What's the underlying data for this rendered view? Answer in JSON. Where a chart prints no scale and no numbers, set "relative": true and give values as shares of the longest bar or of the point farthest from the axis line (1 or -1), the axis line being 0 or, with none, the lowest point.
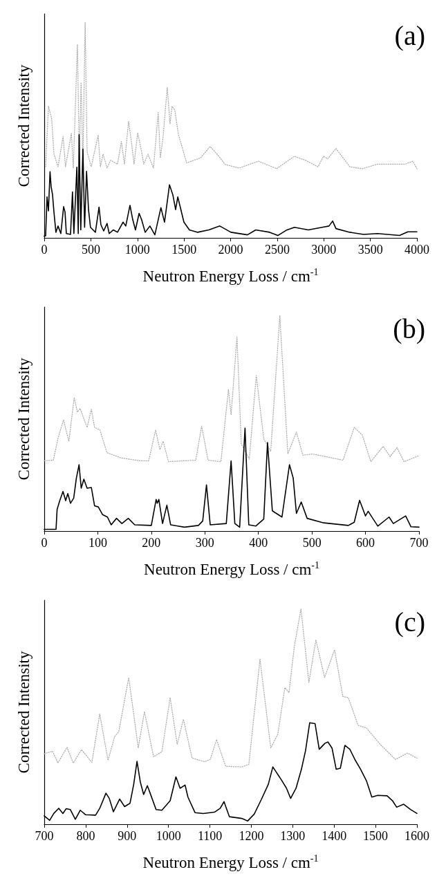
{
  "chart_data": [
    {
      "type": "line",
      "title": "(a)",
      "xlabel": "Neutron Energy Loss / cm$^{-1}$",
      "ylabel": "Corrected Intensity",
      "relative": true,
      "xlim": [
        0,
        4000
      ],
      "xticks": [
        0,
        500,
        1000,
        1500,
        2000,
        2500,
        3000,
        3500,
        4000
      ],
      "grid": false,
      "marker": "none",
      "series": [
        {
          "color": "#000000",
          "line_style": "solid",
          "x": [
            0,
            15,
            30,
            45,
            62,
            74,
            89,
            104,
            125,
            148,
            178,
            208,
            223,
            237,
            282,
            303,
            318,
            350,
            365,
            374,
            392,
            415,
            433,
            454,
            475,
            496,
            549,
            588,
            608,
            638,
            674,
            697,
            742,
            786,
            846,
            875,
            920,
            950,
            979,
            1018,
            1045,
            1083,
            1134,
            1187,
            1252,
            1291,
            1344,
            1380,
            1410,
            1433,
            1499,
            1558,
            1647,
            1766,
            1884,
            2003,
            2181,
            2270,
            2419,
            2507,
            2596,
            2685,
            2834,
            2982,
            3056,
            3095,
            3131,
            3279,
            3427,
            3576,
            3813,
            3902,
            4000
          ],
          "values": [
            0.008,
            0.01,
            0.19,
            0.125,
            0.307,
            0.237,
            0.2,
            0.12,
            0.026,
            0.055,
            0.02,
            0.145,
            0.12,
            0.02,
            0.016,
            0.213,
            0.02,
            0.328,
            0.02,
            0.479,
            0.037,
            0.412,
            0.049,
            0.309,
            0.131,
            0.049,
            0.026,
            0.143,
            0.061,
            0.032,
            0.067,
            0.02,
            0.037,
            0.026,
            0.073,
            0.055,
            0.151,
            0.084,
            0.037,
            0.114,
            0.084,
            0.026,
            0.055,
            0.014,
            0.14,
            0.073,
            0.246,
            0.2,
            0.131,
            0.19,
            0.073,
            0.037,
            0.026,
            0.037,
            0.055,
            0.026,
            0.014,
            0.037,
            0.026,
            0.011,
            0.035,
            0.049,
            0.037,
            0.049,
            0.055,
            0.078,
            0.043,
            0.026,
            0.016,
            0.02,
            0.011,
            0.028,
            0.028
          ]
        },
        {
          "color": "#b0b0b0",
          "line_style": "dotted",
          "x": [
            15,
            45,
            80,
            104,
            148,
            202,
            228,
            291,
            312,
            356,
            377,
            395,
            415,
            439,
            460,
            504,
            579,
            602,
            632,
            674,
            712,
            786,
            828,
            861,
            905,
            935,
            964,
            1003,
            1045,
            1068,
            1113,
            1172,
            1223,
            1246,
            1276,
            1320,
            1350,
            1371,
            1401,
            1439,
            1528,
            1677,
            1780,
            1855,
            1944,
            2092,
            2300,
            2493,
            2685,
            2804,
            2938,
            2997,
            3042,
            3131,
            3279,
            3413,
            3576,
            3872,
            3955,
            4000
          ],
          "values": [
            0.33,
            0.611,
            0.553,
            0.389,
            0.33,
            0.471,
            0.33,
            0.485,
            0.324,
            0.898,
            0.354,
            0.722,
            0.354,
            1.0,
            0.4,
            0.33,
            0.477,
            0.33,
            0.389,
            0.324,
            0.36,
            0.342,
            0.447,
            0.342,
            0.541,
            0.447,
            0.342,
            0.488,
            0.4,
            0.342,
            0.389,
            0.324,
            0.582,
            0.371,
            0.471,
            0.699,
            0.529,
            0.611,
            0.594,
            0.482,
            0.348,
            0.371,
            0.424,
            0.389,
            0.34,
            0.324,
            0.356,
            0.321,
            0.379,
            0.36,
            0.33,
            0.379,
            0.367,
            0.415,
            0.33,
            0.321,
            0.342,
            0.342,
            0.356,
            0.321
          ]
        }
      ]
    },
    {
      "type": "line",
      "title": "(b)",
      "xlabel": "Neutron Energy Loss / cm$^{-1}$",
      "ylabel": "Corrected Intensity",
      "relative": true,
      "xlim": [
        0,
        700
      ],
      "xticks": [
        0,
        100,
        200,
        300,
        400,
        500,
        600,
        700
      ],
      "grid": false,
      "marker": "none",
      "series": [
        {
          "color": "#000000",
          "line_style": "solid",
          "x": [
            0,
            22,
            24,
            29,
            35,
            40,
            44,
            49,
            55,
            60,
            65,
            69,
            74,
            80,
            88,
            94,
            101,
            109,
            118,
            125,
            135,
            145,
            157,
            169,
            200,
            209,
            211,
            214,
            221,
            229,
            236,
            262,
            288,
            296,
            303,
            310,
            340,
            349,
            356,
            365,
            375,
            382,
            395,
            410,
            417,
            426,
            444,
            458,
            465,
            471,
            480,
            491,
            522,
            568,
            579,
            589,
            600,
            605,
            623,
            644,
            652,
            675,
            685,
            700
          ],
          "values": [
            0.008,
            0.008,
            0.1,
            0.141,
            0.184,
            0.141,
            0.174,
            0.129,
            0.153,
            0.246,
            0.308,
            0.199,
            0.241,
            0.199,
            0.202,
            0.117,
            0.112,
            0.076,
            0.065,
            0.029,
            0.059,
            0.035,
            0.059,
            0.029,
            0.026,
            0.147,
            0.129,
            0.147,
            0.035,
            0.12,
            0.029,
            0.018,
            0.026,
            0.047,
            0.214,
            0.029,
            0.035,
            0.326,
            0.035,
            0.018,
            0.478,
            0.029,
            0.023,
            0.056,
            0.411,
            0.094,
            0.065,
            0.308,
            0.246,
            0.082,
            0.135,
            0.059,
            0.038,
            0.026,
            0.041,
            0.143,
            0.07,
            0.092,
            0.023,
            0.065,
            0.035,
            0.07,
            0.02,
            0.018
          ]
        },
        {
          "color": "#b0b0b0",
          "line_style": "dotted",
          "x": [
            0,
            17,
            26,
            36,
            46,
            56,
            62,
            67,
            80,
            88,
            94,
            104,
            117,
            143,
            179,
            195,
            208,
            216,
            222,
            232,
            283,
            294,
            306,
            330,
            344,
            349,
            360,
            368,
            383,
            396,
            410,
            423,
            440,
            455,
            471,
            483,
            501,
            558,
            579,
            594,
            610,
            633,
            646,
            659,
            672,
            700
          ],
          "values": [
            0.326,
            0.329,
            0.434,
            0.516,
            0.417,
            0.62,
            0.552,
            0.569,
            0.481,
            0.565,
            0.481,
            0.469,
            0.364,
            0.34,
            0.326,
            0.326,
            0.469,
            0.378,
            0.417,
            0.322,
            0.329,
            0.487,
            0.329,
            0.322,
            0.657,
            0.54,
            0.901,
            0.405,
            0.334,
            0.722,
            0.428,
            0.37,
            1.0,
            0.358,
            0.46,
            0.352,
            0.358,
            0.329,
            0.481,
            0.446,
            0.322,
            0.393,
            0.346,
            0.387,
            0.322,
            0.35
          ]
        }
      ]
    },
    {
      "type": "line",
      "title": "(c)",
      "xlabel": "Neutron Energy Loss / cm$^{-1}$",
      "ylabel": "Corrected Intensity",
      "relative": true,
      "xlim": [
        700,
        1600
      ],
      "xticks": [
        700,
        800,
        900,
        1000,
        1100,
        1200,
        1300,
        1400,
        1500,
        1600
      ],
      "grid": false,
      "marker": "none",
      "series": [
        {
          "color": "#000000",
          "line_style": "solid",
          "x": [
            700,
            713,
            723,
            735,
            745,
            753,
            763,
            775,
            787,
            800,
            824,
            834,
            849,
            857,
            867,
            882,
            894,
            907,
            916,
            924,
            932,
            940,
            949,
            958,
            970,
            984,
            1004,
            1018,
            1028,
            1040,
            1047,
            1064,
            1084,
            1111,
            1125,
            1134,
            1147,
            1177,
            1191,
            1207,
            1224,
            1241,
            1252,
            1264,
            1274,
            1285,
            1295,
            1308,
            1321,
            1331,
            1341,
            1354,
            1364,
            1378,
            1385,
            1395,
            1405,
            1415,
            1426,
            1438,
            1450,
            1464,
            1478,
            1491,
            1505,
            1528,
            1541,
            1551,
            1568,
            1585,
            1600
          ],
          "values": [
            0.039,
            0.018,
            0.05,
            0.074,
            0.05,
            0.072,
            0.068,
            0.023,
            0.065,
            0.044,
            0.042,
            0.074,
            0.144,
            0.12,
            0.058,
            0.117,
            0.082,
            0.097,
            0.185,
            0.292,
            0.196,
            0.138,
            0.179,
            0.132,
            0.068,
            0.065,
            0.109,
            0.22,
            0.167,
            0.182,
            0.126,
            0.054,
            0.05,
            0.056,
            0.074,
            0.105,
            0.035,
            0.027,
            0.015,
            0.047,
            0.114,
            0.185,
            0.266,
            0.231,
            0.202,
            0.167,
            0.12,
            0.167,
            0.255,
            0.342,
            0.471,
            0.467,
            0.348,
            0.376,
            0.382,
            0.353,
            0.255,
            0.26,
            0.366,
            0.348,
            0.301,
            0.255,
            0.202,
            0.126,
            0.134,
            0.132,
            0.109,
            0.079,
            0.093,
            0.068,
            0.05
          ]
        },
        {
          "color": "#b0b0b0",
          "line_style": "dotted",
          "x": [
            700,
            720,
            733,
            755,
            770,
            790,
            815,
            834,
            854,
            870,
            880,
            904,
            927,
            942,
            964,
            984,
            1004,
            1021,
            1036,
            1057,
            1087,
            1101,
            1116,
            1138,
            1177,
            1194,
            1221,
            1247,
            1264,
            1281,
            1291,
            1304,
            1320,
            1339,
            1356,
            1377,
            1401,
            1421,
            1434,
            1458,
            1478,
            1511,
            1548,
            1577,
            1600
          ],
          "values": [
            0.327,
            0.339,
            0.284,
            0.357,
            0.284,
            0.346,
            0.287,
            0.512,
            0.296,
            0.407,
            0.43,
            0.681,
            0.354,
            0.523,
            0.313,
            0.336,
            0.588,
            0.371,
            0.488,
            0.307,
            0.29,
            0.301,
            0.393,
            0.269,
            0.266,
            0.278,
            0.766,
            0.354,
            0.418,
            0.634,
            0.611,
            0.827,
            1.0,
            0.658,
            0.856,
            0.681,
            0.81,
            0.593,
            0.588,
            0.459,
            0.447,
            0.371,
            0.301,
            0.33,
            0.307
          ]
        }
      ]
    }
  ]
}
